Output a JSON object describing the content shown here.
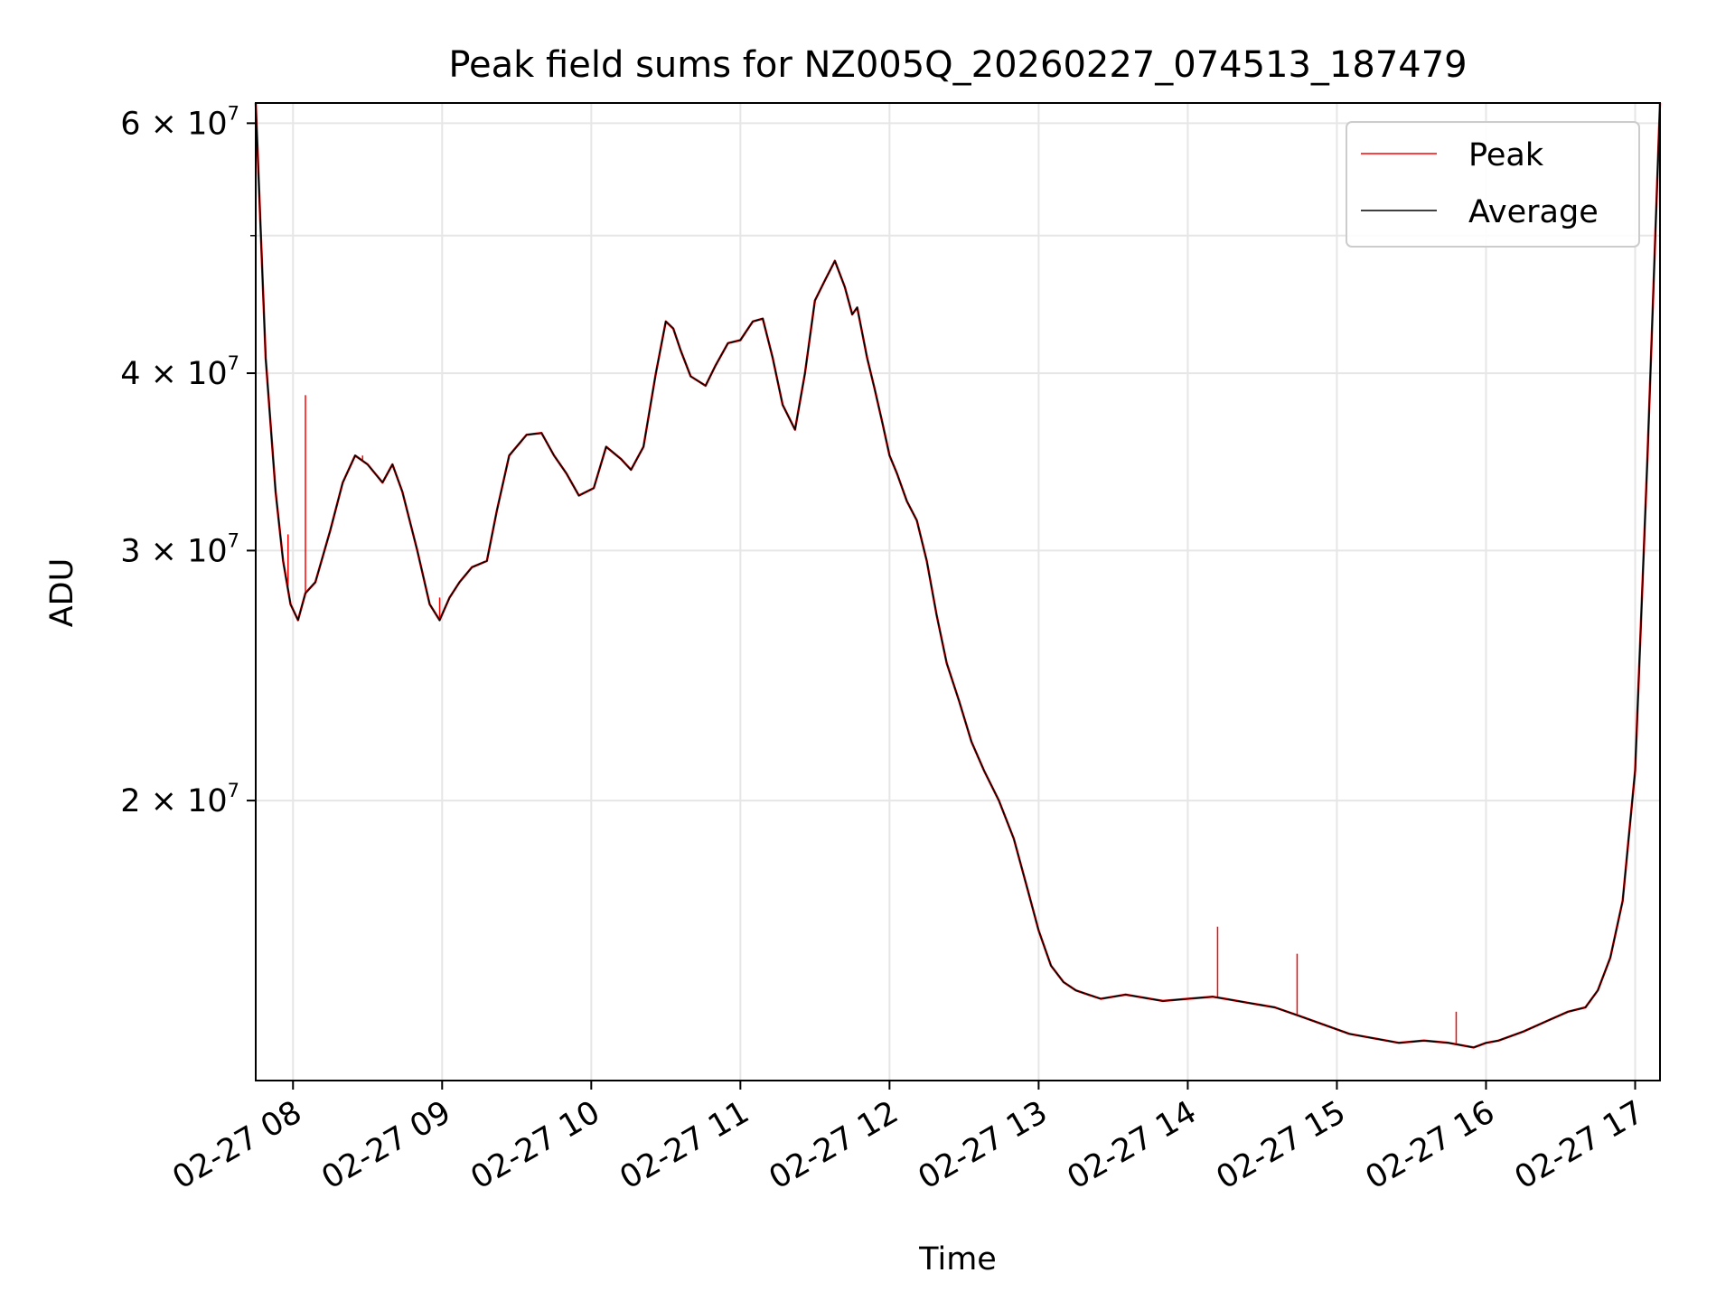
{
  "chart_data": {
    "type": "line",
    "title": "Peak field sums for NZ005Q_20260227_074513_187479",
    "xlabel": "Time",
    "ylabel": "ADU",
    "y_scale": "log",
    "grid": true,
    "legend_position": "top-right",
    "xlim": [
      "2026-02-27 07:45",
      "2026-02-27 17:10"
    ],
    "ylim": [
      12700000,
      62000000
    ],
    "x_ticks": [
      {
        "value": "2026-02-27 08:00",
        "label": "02-27 08"
      },
      {
        "value": "2026-02-27 09:00",
        "label": "02-27 09"
      },
      {
        "value": "2026-02-27 10:00",
        "label": "02-27 10"
      },
      {
        "value": "2026-02-27 11:00",
        "label": "02-27 11"
      },
      {
        "value": "2026-02-27 12:00",
        "label": "02-27 12"
      },
      {
        "value": "2026-02-27 13:00",
        "label": "02-27 13"
      },
      {
        "value": "2026-02-27 14:00",
        "label": "02-27 14"
      },
      {
        "value": "2026-02-27 15:00",
        "label": "02-27 15"
      },
      {
        "value": "2026-02-27 16:00",
        "label": "02-27 16"
      },
      {
        "value": "2026-02-27 17:00",
        "label": "02-27 17"
      }
    ],
    "y_ticks": [
      {
        "value": 20000000,
        "mant": "2",
        "exp": "7"
      },
      {
        "value": 30000000,
        "mant": "3",
        "exp": "7"
      },
      {
        "value": 40000000,
        "mant": "4",
        "exp": "7"
      },
      {
        "value": 60000000,
        "mant": "6",
        "exp": "7"
      }
    ],
    "y_minor_ticks": [
      50000000
    ],
    "series": [
      {
        "name": "Peak",
        "color": "#ff0000",
        "spikes": [
          {
            "x": "2026-02-27 07:58",
            "y": 30800000
          },
          {
            "x": "2026-02-27 08:05",
            "y": 38600000
          },
          {
            "x": "2026-02-27 08:28",
            "y": 35000000
          },
          {
            "x": "2026-02-27 08:59",
            "y": 27800000
          },
          {
            "x": "2026-02-27 14:12",
            "y": 16300000
          },
          {
            "x": "2026-02-27 14:44",
            "y": 15600000
          },
          {
            "x": "2026-02-27 15:48",
            "y": 14200000
          }
        ]
      },
      {
        "name": "Average",
        "color": "#000000",
        "x": [
          "2026-02-27 07:45",
          "2026-02-27 07:49",
          "2026-02-27 07:53",
          "2026-02-27 07:56",
          "2026-02-27 07:59",
          "2026-02-27 08:02",
          "2026-02-27 08:05",
          "2026-02-27 08:09",
          "2026-02-27 08:15",
          "2026-02-27 08:20",
          "2026-02-27 08:25",
          "2026-02-27 08:30",
          "2026-02-27 08:36",
          "2026-02-27 08:40",
          "2026-02-27 08:44",
          "2026-02-27 08:50",
          "2026-02-27 08:55",
          "2026-02-27 08:59",
          "2026-02-27 09:03",
          "2026-02-27 09:07",
          "2026-02-27 09:12",
          "2026-02-27 09:18",
          "2026-02-27 09:22",
          "2026-02-27 09:27",
          "2026-02-27 09:34",
          "2026-02-27 09:40",
          "2026-02-27 09:45",
          "2026-02-27 09:50",
          "2026-02-27 09:55",
          "2026-02-27 10:01",
          "2026-02-27 10:06",
          "2026-02-27 10:12",
          "2026-02-27 10:16",
          "2026-02-27 10:21",
          "2026-02-27 10:26",
          "2026-02-27 10:30",
          "2026-02-27 10:33",
          "2026-02-27 10:36",
          "2026-02-27 10:40",
          "2026-02-27 10:46",
          "2026-02-27 10:50",
          "2026-02-27 10:55",
          "2026-02-27 11:00",
          "2026-02-27 11:05",
          "2026-02-27 11:09",
          "2026-02-27 11:13",
          "2026-02-27 11:17",
          "2026-02-27 11:22",
          "2026-02-27 11:26",
          "2026-02-27 11:30",
          "2026-02-27 11:34",
          "2026-02-27 11:38",
          "2026-02-27 11:42",
          "2026-02-27 11:45",
          "2026-02-27 11:47",
          "2026-02-27 11:51",
          "2026-02-27 11:54",
          "2026-02-27 11:57",
          "2026-02-27 12:00",
          "2026-02-27 12:03",
          "2026-02-27 12:07",
          "2026-02-27 12:11",
          "2026-02-27 12:15",
          "2026-02-27 12:19",
          "2026-02-27 12:23",
          "2026-02-27 12:28",
          "2026-02-27 12:33",
          "2026-02-27 12:38",
          "2026-02-27 12:44",
          "2026-02-27 12:50",
          "2026-02-27 12:56",
          "2026-02-27 13:00",
          "2026-02-27 13:05",
          "2026-02-27 13:10",
          "2026-02-27 13:15",
          "2026-02-27 13:20",
          "2026-02-27 13:25",
          "2026-02-27 13:30",
          "2026-02-27 13:35",
          "2026-02-27 13:40",
          "2026-02-27 13:50",
          "2026-02-27 14:00",
          "2026-02-27 14:10",
          "2026-02-27 14:15",
          "2026-02-27 14:25",
          "2026-02-27 14:35",
          "2026-02-27 14:45",
          "2026-02-27 14:55",
          "2026-02-27 15:05",
          "2026-02-27 15:15",
          "2026-02-27 15:25",
          "2026-02-27 15:35",
          "2026-02-27 15:45",
          "2026-02-27 15:55",
          "2026-02-27 16:00",
          "2026-02-27 16:05",
          "2026-02-27 16:15",
          "2026-02-27 16:25",
          "2026-02-27 16:33",
          "2026-02-27 16:40",
          "2026-02-27 16:45",
          "2026-02-27 16:50",
          "2026-02-27 16:55",
          "2026-02-27 17:00",
          "2026-02-27 17:05",
          "2026-02-27 17:10"
        ],
        "y": [
          62000000,
          41000000,
          33000000,
          29500000,
          27500000,
          26800000,
          28000000,
          28500000,
          31000000,
          33500000,
          35000000,
          34500000,
          33500000,
          34500000,
          33000000,
          30000000,
          27500000,
          26800000,
          27800000,
          28500000,
          29200000,
          29500000,
          32000000,
          35000000,
          36200000,
          36300000,
          35000000,
          34000000,
          32800000,
          33200000,
          35500000,
          34800000,
          34200000,
          35500000,
          40000000,
          43500000,
          43000000,
          41500000,
          39800000,
          39200000,
          40500000,
          42000000,
          42200000,
          43500000,
          43700000,
          41000000,
          38000000,
          36500000,
          40000000,
          45000000,
          46500000,
          48000000,
          46000000,
          44000000,
          44500000,
          41000000,
          39000000,
          37000000,
          35000000,
          34000000,
          32500000,
          31500000,
          29500000,
          27000000,
          25000000,
          23500000,
          22000000,
          21000000,
          20000000,
          18800000,
          17200000,
          16200000,
          15300000,
          14900000,
          14700000,
          14600000,
          14500000,
          14550000,
          14600000,
          14550000,
          14450000,
          14500000,
          14550000,
          14500000,
          14400000,
          14300000,
          14100000,
          13900000,
          13700000,
          13600000,
          13500000,
          13550000,
          13500000,
          13400000,
          13500000,
          13550000,
          13750000,
          14000000,
          14200000,
          14300000,
          14700000,
          15500000,
          17000000,
          21000000,
          35000000,
          62000000
        ]
      }
    ]
  }
}
